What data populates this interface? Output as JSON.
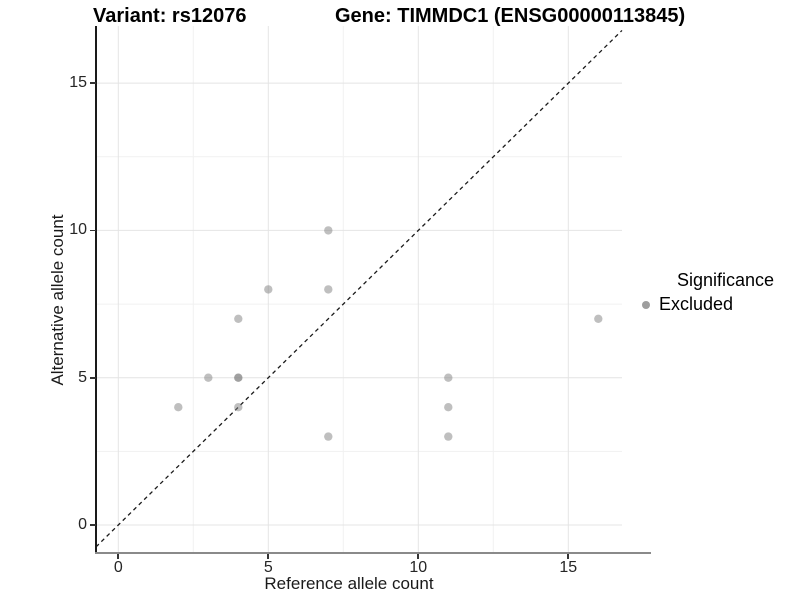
{
  "titles": {
    "left": "Variant: rs12076",
    "right": "Gene: TIMMDC1 (ENSG00000113845)"
  },
  "axes": {
    "x_label": "Reference allele count",
    "y_label": "Alternative allele count"
  },
  "legend": {
    "title": "Significance",
    "items": [
      {
        "label": "Excluded",
        "color": "#9e9e9e"
      }
    ]
  },
  "chart_data": {
    "type": "scatter",
    "title": "Variant: rs12076  Gene: TIMMDC1 (ENSG00000113845)",
    "xlabel": "Reference allele count",
    "ylabel": "Alternative allele count",
    "x_ticks": [
      0,
      5,
      10,
      15
    ],
    "y_ticks": [
      0,
      5,
      10,
      15
    ],
    "x_minor_ticks": [
      2.5,
      7.5,
      12.5
    ],
    "y_minor_ticks": [
      2.5,
      7.5,
      12.5
    ],
    "xlim": [
      -0.743,
      16.79
    ],
    "ylim": [
      -0.95,
      16.94
    ],
    "grid": true,
    "legend_position": "right",
    "series": [
      {
        "name": "Excluded",
        "points": [
          {
            "x": 2,
            "y": 4,
            "n": 1
          },
          {
            "x": 3,
            "y": 5,
            "n": 1
          },
          {
            "x": 4,
            "y": 4,
            "n": 1
          },
          {
            "x": 4,
            "y": 5,
            "n": 2
          },
          {
            "x": 4,
            "y": 7,
            "n": 1
          },
          {
            "x": 5,
            "y": 8,
            "n": 1
          },
          {
            "x": 7,
            "y": 3,
            "n": 1
          },
          {
            "x": 7,
            "y": 8,
            "n": 1
          },
          {
            "x": 7,
            "y": 10,
            "n": 1
          },
          {
            "x": 11,
            "y": 3,
            "n": 1
          },
          {
            "x": 11,
            "y": 4,
            "n": 1
          },
          {
            "x": 11,
            "y": 5,
            "n": 1
          },
          {
            "x": 16,
            "y": 7,
            "n": 1
          }
        ]
      }
    ],
    "identity_line": {
      "style": "dashed",
      "slope": 1,
      "intercept": 0
    }
  },
  "colors": {
    "point": "#808080",
    "point_opacity": 0.5,
    "legend_dot": "#9e9e9e",
    "grid_major": "#e4e4e4",
    "grid_minor": "#f1f1f1",
    "dash_line": "#1a1a1a",
    "axis_text": "#262626"
  }
}
